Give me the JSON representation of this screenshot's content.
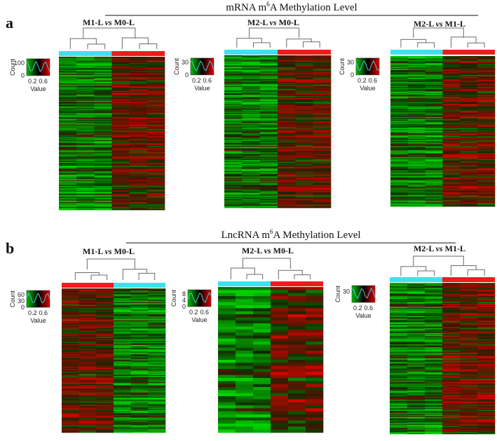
{
  "figure": {
    "label_a": "a",
    "label_b": "b",
    "title_a_pre": "mRNA m",
    "title_a_sup": "6",
    "title_a_post": "A Methylation Level",
    "title_b_pre": "LncRNA m",
    "title_b_sup": "6",
    "title_b_post": "A Methylation Level"
  },
  "colors": {
    "low": "#00c000",
    "mid": "#000000",
    "high": "#e00000",
    "group_cyan": "#3fe0f0",
    "group_red": "#ee1c1c",
    "density": "#4fc8d8"
  },
  "key_labels": {
    "count": "Count",
    "value": "Value"
  },
  "chart_data": [
    {
      "type": "heatmap",
      "id": "a1",
      "title_left": "M1-L",
      "vs": "vs",
      "title_right": "M0-L",
      "group_bar": [
        "cyan",
        "red"
      ],
      "columns": 6,
      "rows": 160,
      "seed": 11,
      "key": {
        "count_ticks": [
          "100",
          "0"
        ],
        "value_ticks": [
          "0.2",
          "0.6"
        ]
      }
    },
    {
      "type": "heatmap",
      "id": "a2",
      "title_left": "M2-L",
      "vs": "vs",
      "title_right": "M0-L",
      "group_bar": [
        "cyan",
        "red"
      ],
      "columns": 6,
      "rows": 150,
      "seed": 23,
      "key": {
        "count_ticks": [
          "30",
          "0"
        ],
        "value_ticks": [
          "0.2",
          "0.6"
        ]
      }
    },
    {
      "type": "heatmap",
      "id": "a3",
      "title_left": "M2-L",
      "vs": "vs",
      "title_right": "M1-L",
      "group_bar": [
        "cyan",
        "red"
      ],
      "columns": 6,
      "rows": 150,
      "seed": 37,
      "key": {
        "count_ticks": [
          "30",
          "0"
        ],
        "value_ticks": [
          "0.2",
          "0.6"
        ]
      }
    },
    {
      "type": "heatmap",
      "id": "b1",
      "title_left": "M1-L",
      "vs": "vs",
      "title_right": "M0-L",
      "group_bar": [
        "red",
        "cyan"
      ],
      "columns": 6,
      "rows": 140,
      "seed": 41,
      "key": {
        "count_ticks": [
          "60",
          "30",
          "0"
        ],
        "value_ticks": [
          "0.2",
          "0.6"
        ]
      }
    },
    {
      "type": "heatmap",
      "id": "b2",
      "title_left": "M2-L",
      "vs": "vs",
      "title_right": "M0-L",
      "group_bar": [
        "cyan",
        "red"
      ],
      "columns": 6,
      "rows": 48,
      "seed": 53,
      "key": {
        "count_ticks": [
          "8",
          "4",
          "0"
        ],
        "value_ticks": [
          "0.2",
          "0.6"
        ]
      }
    },
    {
      "type": "heatmap",
      "id": "b3",
      "title_left": "M2-L",
      "vs": "vs",
      "title_right": "M1-L",
      "group_bar": [
        "cyan",
        "red"
      ],
      "columns": 6,
      "rows": 150,
      "seed": 67,
      "key": {
        "count_ticks": [
          "30"
        ],
        "value_ticks": [
          "0.2",
          "0.6"
        ]
      }
    }
  ]
}
